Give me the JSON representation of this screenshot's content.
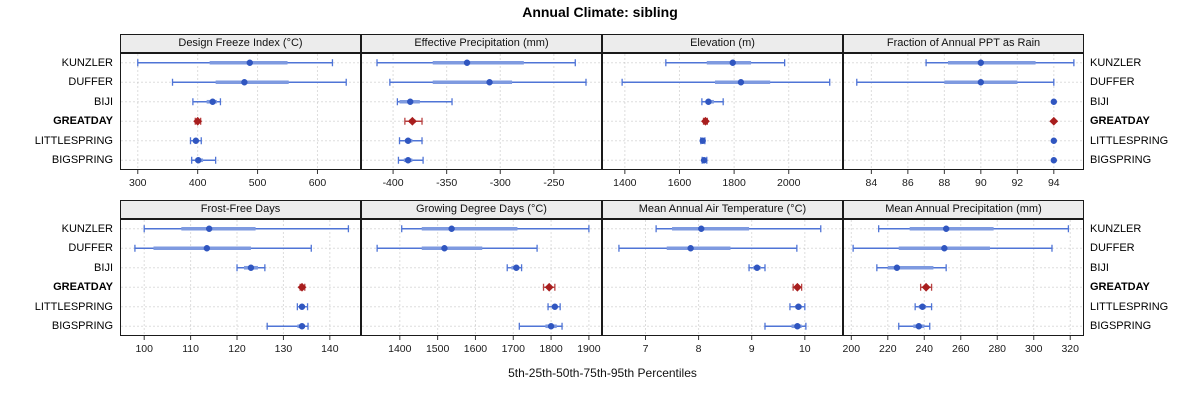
{
  "title": "Annual Climate: sibling",
  "caption": "5th-25th-50th-75th-95th Percentiles",
  "colors": {
    "point": "#3056c0",
    "whisker": "#4f74d6",
    "box_bar": "#7e9ae0",
    "highlight_point": "#a81e1e",
    "highlight_whisker": "#b84040",
    "highlight_box_bar": "#cc7070",
    "strip_bg": "#ececec",
    "panel_border": "#1a1a1a",
    "grid": "#bbbbbb",
    "tick_text": "#1a1a1a"
  },
  "chart_data": {
    "type": "dotplot-percentiles",
    "percentile_levels": [
      5,
      25,
      50,
      75,
      95
    ],
    "categories": [
      "KUNZLER",
      "DUFFER",
      "BIJI",
      "GREATDAY",
      "LITTLESPRING",
      "BIGSPRING"
    ],
    "highlight_category": "GREATDAY",
    "layout": {
      "rows": 2,
      "cols": 4,
      "grid": "dotted",
      "y_labels": "both-sides"
    },
    "panels": [
      {
        "title": "Design Freeze Index (°C)",
        "xlim": [
          272,
          671
        ],
        "ticks": [
          300,
          400,
          500,
          600
        ],
        "percentiles": [
          [
            300,
            420,
            487,
            550,
            625
          ],
          [
            358,
            430,
            478,
            552,
            648
          ],
          [
            392,
            415,
            425,
            432,
            438
          ],
          [
            396,
            398,
            400,
            402,
            405
          ],
          [
            388,
            393,
            397,
            401,
            406
          ],
          [
            390,
            396,
            401,
            409,
            430
          ]
        ]
      },
      {
        "title": "Effective Precipitation (mm)",
        "xlim": [
          -429,
          -206
        ],
        "ticks": [
          -400,
          -350,
          -300,
          -250
        ],
        "percentiles": [
          [
            -415,
            -363,
            -331,
            -278,
            -230
          ],
          [
            -403,
            -363,
            -310,
            -289,
            -220
          ],
          [
            -396,
            -394,
            -384,
            -375,
            -345
          ],
          [
            -389,
            -385,
            -382,
            -379,
            -373
          ],
          [
            -394,
            -389,
            -386,
            -382,
            -373
          ],
          [
            -395,
            -390,
            -386,
            -382,
            -372
          ]
        ]
      },
      {
        "title": "Elevation (m)",
        "xlim": [
          1320,
          2195
        ],
        "ticks": [
          1400,
          1600,
          1800,
          2000
        ],
        "percentiles": [
          [
            1550,
            1700,
            1795,
            1862,
            1985
          ],
          [
            1390,
            1730,
            1825,
            1932,
            2150
          ],
          [
            1682,
            1695,
            1706,
            1726,
            1760
          ],
          [
            1688,
            1692,
            1695,
            1698,
            1702
          ],
          [
            1678,
            1682,
            1685,
            1688,
            1693
          ],
          [
            1683,
            1687,
            1690,
            1694,
            1700
          ]
        ]
      },
      {
        "title": "Fraction of Annual PPT as Rain",
        "xlim": [
          82.5,
          95.6
        ],
        "ticks": [
          84,
          86,
          88,
          90,
          92,
          94
        ],
        "percentiles": [
          [
            87,
            88.2,
            90,
            93,
            95.1
          ],
          [
            83.2,
            88,
            90,
            92,
            94
          ],
          [
            94,
            94,
            94,
            94,
            94
          ],
          [
            94,
            94,
            94,
            94,
            94
          ],
          [
            94,
            94,
            94,
            94,
            94
          ],
          [
            94,
            94,
            94,
            94,
            94
          ]
        ]
      },
      {
        "title": "Frost-Free Days",
        "xlim": [
          95,
          146.5
        ],
        "ticks": [
          100,
          110,
          120,
          130,
          140
        ],
        "percentiles": [
          [
            100,
            108,
            114,
            124,
            144
          ],
          [
            98,
            102,
            113.5,
            123,
            136
          ],
          [
            120,
            121.5,
            123,
            124.5,
            126
          ],
          [
            133.6,
            133.8,
            134,
            134.3,
            134.6
          ],
          [
            133,
            133.5,
            134,
            134.5,
            135.2
          ],
          [
            126.5,
            133,
            134,
            134.6,
            135.3
          ]
        ]
      },
      {
        "title": "Growing Degree Days (°C)",
        "xlim": [
          1300,
          1932
        ],
        "ticks": [
          1400,
          1500,
          1600,
          1700,
          1800,
          1900
        ],
        "percentiles": [
          [
            1405,
            1458,
            1537,
            1711,
            1900
          ],
          [
            1340,
            1458,
            1518,
            1618,
            1763
          ],
          [
            1684,
            1695,
            1708,
            1716,
            1722
          ],
          [
            1780,
            1788,
            1795,
            1802,
            1810
          ],
          [
            1792,
            1802,
            1810,
            1817,
            1824
          ],
          [
            1716,
            1785,
            1800,
            1815,
            1829
          ]
        ]
      },
      {
        "title": "Mean Annual Air Temperature (°C)",
        "xlim": [
          6.2,
          10.7
        ],
        "ticks": [
          7,
          8,
          9,
          10
        ],
        "percentiles": [
          [
            7.2,
            7.5,
            8.05,
            8.95,
            10.3
          ],
          [
            6.5,
            7.4,
            7.85,
            8.6,
            9.85
          ],
          [
            8.95,
            9.03,
            9.1,
            9.17,
            9.25
          ],
          [
            9.78,
            9.82,
            9.86,
            9.9,
            9.94
          ],
          [
            9.72,
            9.82,
            9.88,
            9.94,
            10.0
          ],
          [
            9.25,
            9.75,
            9.86,
            9.94,
            10.02
          ]
        ]
      },
      {
        "title": "Mean Annual Precipitation (mm)",
        "xlim": [
          196,
          327
        ],
        "ticks": [
          200,
          220,
          240,
          260,
          280,
          300,
          320
        ],
        "percentiles": [
          [
            215,
            232,
            252,
            278,
            319
          ],
          [
            201,
            226,
            251,
            276,
            310
          ],
          [
            214,
            220,
            225,
            245,
            252
          ],
          [
            238,
            240,
            241,
            242,
            244
          ],
          [
            235,
            237,
            239,
            241,
            244
          ],
          [
            226,
            234,
            237,
            240,
            243
          ]
        ]
      }
    ]
  }
}
